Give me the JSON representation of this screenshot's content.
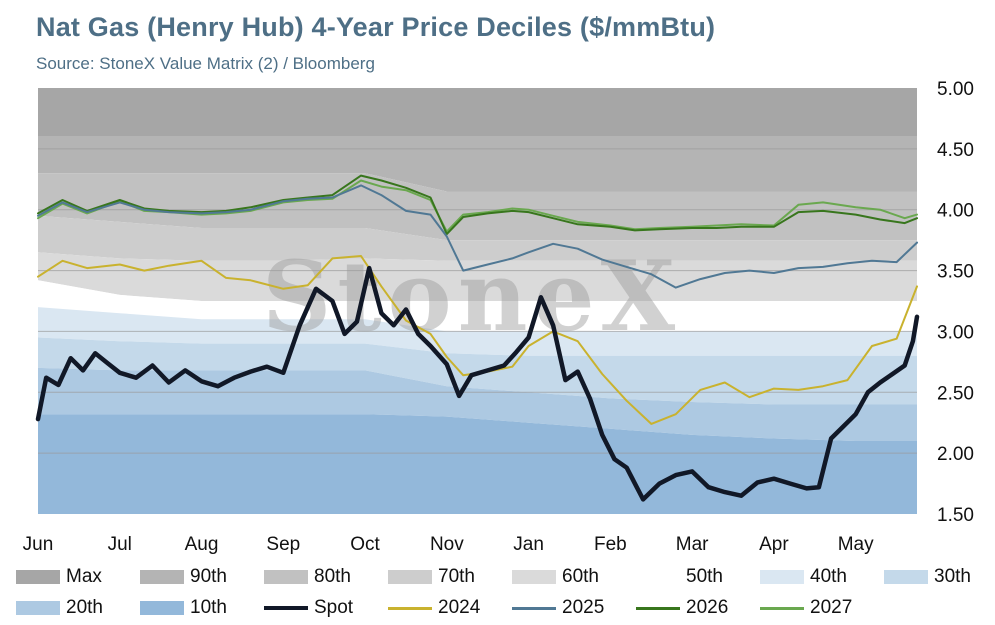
{
  "title": "Nat Gas (Henry Hub) 4-Year Price Deciles ($/mmBtu)",
  "subtitle": "Source: StoneX Value Matrix (2) / Bloomberg",
  "watermark": "StoneX",
  "chart_data": {
    "type": "area",
    "title": "Nat Gas (Henry Hub) 4-Year Price Deciles ($/mmBtu)",
    "ylim": [
      1.5,
      5.0
    ],
    "y_ticks": [
      "5.00",
      "4.50",
      "4.00",
      "3.50",
      "3.00",
      "2.50",
      "2.00",
      "1.50"
    ],
    "x_ticks": [
      "Jun",
      "Jul",
      "Aug",
      "Sep",
      "Oct",
      "Nov",
      "Jan",
      "Feb",
      "Mar",
      "Apr",
      "May"
    ],
    "x_tick_positions": [
      0,
      1,
      2,
      3,
      4,
      5,
      6,
      7,
      8,
      9,
      10
    ],
    "xlim": [
      0,
      10.75
    ],
    "grid": true,
    "legend_position": "bottom",
    "decile_bands": [
      {
        "name": "Max",
        "color": "#a6a6a6",
        "x": [
          0,
          10.75
        ],
        "upper": [
          5.0,
          5.0
        ],
        "lower": [
          4.6,
          4.6
        ]
      },
      {
        "name": "90th",
        "color": "#b4b4b4",
        "x": [
          0,
          1,
          2,
          3,
          4,
          5,
          6,
          7,
          8,
          9,
          10,
          10.75
        ],
        "upper": [
          4.6,
          4.6,
          4.6,
          4.6,
          4.6,
          4.6,
          4.6,
          4.6,
          4.6,
          4.6,
          4.6,
          4.6
        ],
        "lower": [
          4.3,
          4.3,
          4.3,
          4.3,
          4.3,
          4.15,
          4.15,
          4.15,
          4.15,
          4.15,
          4.15,
          4.15
        ]
      },
      {
        "name": "80th",
        "color": "#c1c1c1",
        "x": [
          0,
          1,
          2,
          3,
          4,
          5,
          6,
          7,
          8,
          9,
          10,
          10.75
        ],
        "upper": [
          4.3,
          4.3,
          4.3,
          4.3,
          4.3,
          4.15,
          4.15,
          4.15,
          4.15,
          4.15,
          4.15,
          4.15
        ],
        "lower": [
          3.95,
          3.9,
          3.85,
          3.85,
          3.85,
          3.75,
          3.75,
          3.75,
          3.75,
          3.75,
          3.75,
          3.75
        ]
      },
      {
        "name": "70th",
        "color": "#cdcdcd",
        "x": [
          0,
          1,
          2,
          3,
          4,
          5,
          6,
          7,
          8,
          9,
          10,
          10.75
        ],
        "upper": [
          3.95,
          3.9,
          3.85,
          3.85,
          3.85,
          3.75,
          3.75,
          3.75,
          3.75,
          3.75,
          3.75,
          3.75
        ],
        "lower": [
          3.65,
          3.6,
          3.58,
          3.58,
          3.6,
          3.58,
          3.58,
          3.58,
          3.58,
          3.58,
          3.58,
          3.58
        ]
      },
      {
        "name": "60th",
        "color": "#dadada",
        "x": [
          0,
          1,
          2,
          3,
          4,
          5,
          6,
          7,
          8,
          9,
          10,
          10.75
        ],
        "upper": [
          3.65,
          3.6,
          3.58,
          3.58,
          3.6,
          3.58,
          3.58,
          3.58,
          3.58,
          3.58,
          3.58,
          3.58
        ],
        "lower": [
          3.42,
          3.3,
          3.25,
          3.25,
          3.25,
          3.25,
          3.25,
          3.25,
          3.25,
          3.25,
          3.25,
          3.25
        ]
      },
      {
        "name": "50th",
        "color": "#ffffff",
        "x": [
          0,
          1,
          2,
          3,
          4,
          5,
          6,
          7,
          8,
          9,
          10,
          10.75
        ],
        "upper": [
          3.42,
          3.3,
          3.25,
          3.25,
          3.25,
          3.25,
          3.25,
          3.25,
          3.25,
          3.25,
          3.25,
          3.25
        ],
        "lower": [
          3.2,
          3.15,
          3.1,
          3.1,
          3.1,
          3.0,
          3.0,
          3.0,
          3.0,
          3.0,
          3.0,
          3.0
        ]
      },
      {
        "name": "40th",
        "color": "#dae7f2",
        "x": [
          0,
          1,
          2,
          3,
          4,
          5,
          6,
          7,
          8,
          9,
          10,
          10.75
        ],
        "upper": [
          3.2,
          3.15,
          3.1,
          3.1,
          3.1,
          3.0,
          3.0,
          3.0,
          3.0,
          3.0,
          3.0,
          3.0
        ],
        "lower": [
          2.95,
          2.92,
          2.9,
          2.9,
          2.9,
          2.82,
          2.8,
          2.8,
          2.8,
          2.8,
          2.8,
          2.8
        ]
      },
      {
        "name": "30th",
        "color": "#c4d9ea",
        "x": [
          0,
          1,
          2,
          3,
          4,
          5,
          6,
          7,
          8,
          9,
          10,
          10.75
        ],
        "upper": [
          2.95,
          2.92,
          2.9,
          2.9,
          2.9,
          2.82,
          2.8,
          2.8,
          2.8,
          2.8,
          2.8,
          2.8
        ],
        "lower": [
          2.7,
          2.68,
          2.68,
          2.68,
          2.68,
          2.55,
          2.5,
          2.45,
          2.42,
          2.4,
          2.4,
          2.4
        ]
      },
      {
        "name": "20th",
        "color": "#adc9e2",
        "x": [
          0,
          1,
          2,
          3,
          4,
          5,
          6,
          7,
          8,
          9,
          10,
          10.75
        ],
        "upper": [
          2.7,
          2.68,
          2.68,
          2.68,
          2.68,
          2.55,
          2.5,
          2.45,
          2.42,
          2.4,
          2.4,
          2.4
        ],
        "lower": [
          2.32,
          2.32,
          2.32,
          2.32,
          2.32,
          2.3,
          2.25,
          2.2,
          2.15,
          2.12,
          2.1,
          2.1
        ]
      },
      {
        "name": "10th",
        "color": "#93b8da",
        "x": [
          0,
          1,
          2,
          3,
          4,
          5,
          6,
          7,
          8,
          9,
          10,
          10.75
        ],
        "upper": [
          2.32,
          2.32,
          2.32,
          2.32,
          2.32,
          2.3,
          2.25,
          2.2,
          2.15,
          2.12,
          2.1,
          2.1
        ],
        "lower": [
          1.5,
          1.5,
          1.5,
          1.5,
          1.5,
          1.5,
          1.5,
          1.5,
          1.5,
          1.5,
          1.5,
          1.5
        ]
      }
    ],
    "series": [
      {
        "name": "2027",
        "color": "#6aa84f",
        "width": 2,
        "x": [
          0,
          0.3,
          0.6,
          1.0,
          1.3,
          1.6,
          2.0,
          2.3,
          2.6,
          3.0,
          3.3,
          3.6,
          3.95,
          4.2,
          4.5,
          4.8,
          5.0,
          5.2,
          5.5,
          5.8,
          6.0,
          6.3,
          6.6,
          7.0,
          7.3,
          7.6,
          8.0,
          8.3,
          8.6,
          9.0,
          9.3,
          9.6,
          10.0,
          10.3,
          10.6,
          10.75
        ],
        "y": [
          3.93,
          4.05,
          3.97,
          4.07,
          3.99,
          3.98,
          3.96,
          3.97,
          3.99,
          4.06,
          4.08,
          4.09,
          4.24,
          4.19,
          4.16,
          4.08,
          3.82,
          3.96,
          3.98,
          4.01,
          4.0,
          3.95,
          3.9,
          3.87,
          3.84,
          3.85,
          3.86,
          3.87,
          3.88,
          3.87,
          4.04,
          4.06,
          4.02,
          4.0,
          3.93,
          3.96
        ]
      },
      {
        "name": "2026",
        "color": "#38761d",
        "width": 2,
        "x": [
          0,
          0.3,
          0.6,
          1.0,
          1.3,
          1.6,
          2.0,
          2.3,
          2.6,
          3.0,
          3.3,
          3.6,
          3.95,
          4.2,
          4.5,
          4.8,
          5.0,
          5.2,
          5.5,
          5.8,
          6.0,
          6.3,
          6.6,
          7.0,
          7.3,
          7.6,
          8.0,
          8.3,
          8.6,
          9.0,
          9.3,
          9.6,
          10.0,
          10.3,
          10.6,
          10.75
        ],
        "y": [
          3.97,
          4.08,
          3.99,
          4.08,
          4.01,
          3.99,
          3.98,
          3.99,
          4.02,
          4.08,
          4.1,
          4.12,
          4.28,
          4.24,
          4.18,
          4.1,
          3.8,
          3.94,
          3.97,
          3.99,
          3.98,
          3.93,
          3.88,
          3.86,
          3.83,
          3.84,
          3.85,
          3.85,
          3.86,
          3.86,
          3.98,
          3.99,
          3.96,
          3.92,
          3.89,
          3.93
        ]
      },
      {
        "name": "2025",
        "color": "#507894",
        "width": 2,
        "x": [
          0,
          0.3,
          0.6,
          1.0,
          1.3,
          1.6,
          2.0,
          2.3,
          2.6,
          3.0,
          3.3,
          3.6,
          3.95,
          4.2,
          4.5,
          4.8,
          5.0,
          5.2,
          5.5,
          5.8,
          6.0,
          6.3,
          6.6,
          6.9,
          7.2,
          7.5,
          7.8,
          8.1,
          8.4,
          8.7,
          9.0,
          9.3,
          9.6,
          9.9,
          10.2,
          10.5,
          10.75
        ],
        "y": [
          3.95,
          4.06,
          3.98,
          4.06,
          4.0,
          3.98,
          3.97,
          3.98,
          4.0,
          4.07,
          4.09,
          4.1,
          4.2,
          4.12,
          3.99,
          3.96,
          3.78,
          3.5,
          3.55,
          3.6,
          3.65,
          3.72,
          3.68,
          3.59,
          3.53,
          3.47,
          3.36,
          3.43,
          3.48,
          3.5,
          3.48,
          3.52,
          3.53,
          3.56,
          3.58,
          3.57,
          3.73
        ]
      },
      {
        "name": "2024",
        "color": "#c9b22e",
        "width": 2,
        "x": [
          0,
          0.3,
          0.6,
          1.0,
          1.3,
          1.6,
          2.0,
          2.3,
          2.6,
          3.0,
          3.3,
          3.6,
          3.95,
          4.2,
          4.5,
          4.8,
          5.0,
          5.2,
          5.5,
          5.8,
          6.0,
          6.3,
          6.6,
          6.9,
          7.2,
          7.5,
          7.8,
          8.1,
          8.4,
          8.7,
          9.0,
          9.3,
          9.6,
          9.9,
          10.2,
          10.5,
          10.75
        ],
        "y": [
          3.45,
          3.58,
          3.52,
          3.55,
          3.5,
          3.54,
          3.58,
          3.44,
          3.42,
          3.35,
          3.38,
          3.6,
          3.62,
          3.37,
          3.09,
          2.98,
          2.79,
          2.64,
          2.67,
          2.71,
          2.88,
          3.0,
          2.92,
          2.65,
          2.43,
          2.24,
          2.32,
          2.52,
          2.58,
          2.46,
          2.53,
          2.52,
          2.55,
          2.6,
          2.88,
          2.94,
          3.37
        ]
      },
      {
        "name": "Spot",
        "color": "#111827",
        "width": 4.5,
        "x": [
          0,
          0.1,
          0.25,
          0.4,
          0.55,
          0.7,
          0.85,
          1.0,
          1.2,
          1.4,
          1.6,
          1.8,
          2.0,
          2.2,
          2.4,
          2.6,
          2.8,
          3.0,
          3.2,
          3.4,
          3.6,
          3.75,
          3.9,
          4.05,
          4.2,
          4.35,
          4.5,
          4.65,
          4.8,
          5.0,
          5.15,
          5.3,
          5.5,
          5.7,
          5.85,
          6.0,
          6.15,
          6.3,
          6.45,
          6.6,
          6.75,
          6.9,
          7.05,
          7.2,
          7.4,
          7.6,
          7.8,
          8.0,
          8.2,
          8.4,
          8.6,
          8.8,
          9.0,
          9.2,
          9.4,
          9.55,
          9.7,
          9.85,
          10.0,
          10.15,
          10.3,
          10.45,
          10.6,
          10.7,
          10.75
        ],
        "y": [
          2.28,
          2.62,
          2.56,
          2.78,
          2.68,
          2.82,
          2.74,
          2.66,
          2.62,
          2.72,
          2.58,
          2.68,
          2.59,
          2.55,
          2.62,
          2.67,
          2.71,
          2.66,
          3.05,
          3.35,
          3.25,
          2.98,
          3.08,
          3.52,
          3.15,
          3.05,
          3.18,
          2.98,
          2.88,
          2.73,
          2.47,
          2.64,
          2.68,
          2.72,
          2.83,
          2.95,
          3.28,
          3.05,
          2.6,
          2.67,
          2.45,
          2.15,
          1.95,
          1.88,
          1.62,
          1.75,
          1.82,
          1.85,
          1.72,
          1.68,
          1.65,
          1.76,
          1.79,
          1.75,
          1.71,
          1.72,
          2.12,
          2.22,
          2.32,
          2.5,
          2.58,
          2.65,
          2.72,
          2.92,
          3.12
        ]
      }
    ],
    "legend": [
      {
        "name": "Max",
        "kind": "band",
        "color": "#a6a6a6"
      },
      {
        "name": "90th",
        "kind": "band",
        "color": "#b4b4b4"
      },
      {
        "name": "80th",
        "kind": "band",
        "color": "#c1c1c1"
      },
      {
        "name": "70th",
        "kind": "band",
        "color": "#cdcdcd"
      },
      {
        "name": "60th",
        "kind": "band",
        "color": "#dadada"
      },
      {
        "name": "50th",
        "kind": "band",
        "color": "#ffffff"
      },
      {
        "name": "40th",
        "kind": "band",
        "color": "#dae7f2"
      },
      {
        "name": "30th",
        "kind": "band",
        "color": "#c4d9ea"
      },
      {
        "name": "20th",
        "kind": "band",
        "color": "#adc9e2"
      },
      {
        "name": "10th",
        "kind": "band",
        "color": "#93b8da"
      },
      {
        "name": "Spot",
        "kind": "line",
        "color": "#111827"
      },
      {
        "name": "2024",
        "kind": "line",
        "color": "#c9b22e"
      },
      {
        "name": "2025",
        "kind": "line",
        "color": "#507894"
      },
      {
        "name": "2026",
        "kind": "line",
        "color": "#38761d"
      },
      {
        "name": "2027",
        "kind": "line",
        "color": "#6aa84f"
      }
    ]
  }
}
